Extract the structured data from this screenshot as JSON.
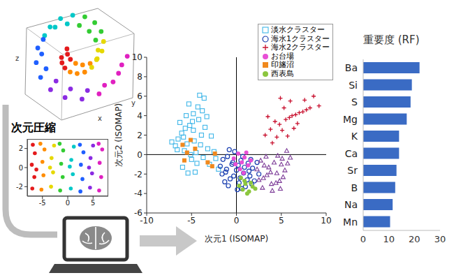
{
  "chart_data": [
    {
      "type": "scatter3d",
      "xlabel": "x",
      "ylabel": "y",
      "zlabel": "z",
      "tick_labels": false,
      "xlim": [
        -1,
        1.3
      ],
      "ylim": [
        -0.9,
        0.8
      ],
      "series": [
        {
          "color": "#e41a1c",
          "x": [
            -0.263,
            -0.252,
            -0.188,
            -0.143,
            -0.132,
            -0.068
          ],
          "y": [
            -0.042,
            -0.135,
            -0.224,
            0.108,
            0.015,
            -0.074
          ]
        },
        {
          "color": "#ff8c00",
          "x": [
            -0.073,
            0.08,
            0.246,
            0.047,
            0.2,
            0.366
          ],
          "y": [
            -0.294,
            -0.321,
            -0.296,
            -0.144,
            -0.171,
            -0.146
          ]
        },
        {
          "color": "#e6d800",
          "x": [
            0.4,
            0.506,
            0.54,
            0.52,
            0.626,
            0.66
          ],
          "y": [
            -0.213,
            -0.08,
            0.086,
            -0.063,
            0.07,
            0.236
          ]
        },
        {
          "color": "#33cc33",
          "x": [
            0.487,
            0.346,
            0.129,
            0.607,
            0.466,
            0.249
          ],
          "y": [
            0.261,
            0.414,
            0.515,
            0.411,
            0.564,
            0.665
          ]
        },
        {
          "color": "#00c8c8",
          "x": [
            -0.137,
            -0.404,
            -0.634,
            -0.017,
            -0.284,
            -0.514
          ],
          "y": [
            0.543,
            0.485,
            0.339,
            0.693,
            0.635,
            0.489
          ]
        },
        {
          "color": "#1f5fff",
          "x": [
            -0.784,
            -0.818,
            -0.722,
            -0.664,
            -0.698,
            -0.602
          ],
          "y": [
            0.123,
            -0.131,
            -0.388,
            0.273,
            0.019,
            -0.238
          ]
        },
        {
          "color": "#8a2be2",
          "x": [
            -0.503,
            -0.185,
            0.187,
            -0.383,
            -0.065,
            0.307
          ],
          "y": [
            -0.602,
            -0.738,
            -0.766,
            -0.452,
            -0.588,
            -0.616
          ]
        },
        {
          "color": "#e020c0",
          "x": [
            0.562,
            0.869,
            1.06,
            0.682,
            0.989,
            1.18
          ],
          "y": [
            -0.674,
            -0.467,
            -0.171,
            -0.524,
            -0.317,
            -0.021
          ]
        }
      ]
    },
    {
      "type": "scatter",
      "title": "次元圧縮",
      "xlim": [
        -8,
        8
      ],
      "ylim": [
        -3,
        3
      ],
      "xticks": [
        -5,
        0,
        5
      ],
      "yticks": [
        -2,
        0,
        2
      ],
      "series": [
        {
          "color": "#e41a1c",
          "x": [
            -7,
            -6.6,
            -7.1,
            -6.5,
            -6.9,
            -6.2
          ],
          "y": [
            -2.2,
            -1,
            0.3,
            1.5,
            2.4,
            -0.2
          ]
        },
        {
          "color": "#ff8c00",
          "x": [
            -5.2,
            -4.8,
            -5,
            -4.6,
            -5.4
          ],
          "y": [
            -2.3,
            -0.8,
            0.6,
            1.9,
            2.5
          ]
        },
        {
          "color": "#e6d800",
          "x": [
            -3.3,
            -2.9,
            -3.2,
            -2.7,
            -3.5
          ],
          "y": [
            -2,
            -0.5,
            1,
            2.3,
            0
          ]
        },
        {
          "color": "#33cc33",
          "x": [
            -1.5,
            -1,
            -1.3,
            -0.9,
            -1.6
          ],
          "y": [
            -2.4,
            -1,
            0.4,
            1.8,
            2.5
          ]
        },
        {
          "color": "#00c8c8",
          "x": [
            0.6,
            1,
            0.7,
            1.2,
            0.4
          ],
          "y": [
            -2.2,
            -0.7,
            0.8,
            2.2,
            0.1
          ]
        },
        {
          "color": "#1f5fff",
          "x": [
            2.5,
            2.9,
            2.6,
            3.1,
            2.4
          ],
          "y": [
            -2.5,
            -1.2,
            0.3,
            1.6,
            2.4
          ]
        },
        {
          "color": "#8a2be2",
          "x": [
            4.4,
            4.8,
            4.5,
            5,
            4.2
          ],
          "y": [
            -2.1,
            -0.6,
            1,
            2.3,
            0
          ]
        },
        {
          "color": "#e020c0",
          "x": [
            6.2,
            6.6,
            6.3,
            6.8,
            6.1
          ],
          "y": [
            -2.4,
            -1,
            0.5,
            1.9,
            2.5
          ]
        }
      ]
    },
    {
      "type": "scatter",
      "xlabel": "次元1 (ISOMAP)",
      "ylabel": "次元2 (ISOMAP)",
      "xlim": [
        -10,
        10
      ],
      "ylim": [
        -6,
        10
      ],
      "xticks": [
        -10,
        -5,
        0,
        5,
        10
      ],
      "yticks": [
        -6,
        -4,
        -2,
        0,
        2,
        4,
        6,
        8,
        10
      ],
      "legend": "top-right",
      "series": [
        {
          "name": "淡水クラスター",
          "color": "#3fb6e8",
          "marker": "square_open",
          "x": [
            -7.2,
            -6.8,
            -6.5,
            -6.1,
            -5.8,
            -5.5,
            -5.2,
            -5.0,
            -4.8,
            -4.5,
            -4.2,
            -4.0,
            -3.8,
            -3.5,
            -3.2,
            -3.0,
            -2.8,
            -2.5,
            -6.0,
            -5.6,
            -5.3,
            -4.9,
            -4.6,
            -4.3,
            -3.9,
            -3.6,
            -5.7,
            -5.1,
            -4.4,
            -6.3,
            -2.3,
            -2.0,
            -4.7,
            -5.4,
            -3.3,
            -6.6,
            -5.9,
            -4.1,
            -3.7,
            -4.8
          ],
          "y": [
            1.3,
            0.9,
            1.6,
            2.2,
            0.4,
            1.1,
            3.0,
            -0.5,
            2.5,
            0.2,
            3.6,
            1.0,
            4.5,
            2.8,
            0.6,
            -1.0,
            1.9,
            0.3,
            -1.3,
            4.0,
            5.2,
            3.4,
            -1.8,
            4.9,
            2.0,
            5.8,
            2.7,
            0.0,
            -0.9,
            3.3,
            -0.4,
            -1.5,
            1.4,
            -1.9,
            3.9,
            0.5,
            1.8,
            6.1,
            -0.3,
            4.2
          ]
        },
        {
          "name": "海水1クラスター",
          "color": "#1a3fb0",
          "marker": "circle_open",
          "x": [
            -1.8,
            -1.5,
            -1.2,
            -1.0,
            -0.7,
            -0.5,
            -0.2,
            0.0,
            0.3,
            0.5,
            0.8,
            1.0,
            1.3,
            1.5,
            1.8,
            2.0,
            2.3,
            -1.3,
            -0.8,
            -0.3,
            0.2,
            0.7,
            1.2,
            1.7,
            -1.6,
            -0.9,
            0.1,
            0.9,
            1.6,
            2.5,
            -0.4,
            0.6,
            1.4,
            -1.1,
            0.4
          ],
          "y": [
            -1.2,
            -0.5,
            -1.8,
            -0.2,
            -2.5,
            -1.0,
            0.3,
            -1.6,
            -2.9,
            -0.6,
            -1.9,
            -3.3,
            -0.9,
            -2.2,
            -1.4,
            -2.7,
            -0.8,
            -2.8,
            0.5,
            -2.2,
            -1.1,
            -0.2,
            -2.6,
            -3.0,
            -2.0,
            -3.2,
            -3.6,
            -1.3,
            -0.5,
            -2.0,
            -0.8,
            -3.5,
            -1.7,
            -1.5,
            -2.4
          ]
        },
        {
          "name": "海水2クラスター",
          "color": "#c8102e",
          "marker": "plus",
          "x": [
            3.2,
            3.8,
            4.3,
            4.8,
            5.1,
            5.5,
            5.9,
            6.2,
            6.6,
            7.0,
            7.4,
            7.8,
            8.2,
            4.5,
            5.3,
            6.0,
            6.8,
            3.5,
            4.0,
            7.6,
            8.6,
            9.2,
            5.7,
            6.4,
            4.9
          ],
          "y": [
            2.0,
            2.6,
            3.4,
            3.1,
            2.5,
            3.6,
            3.8,
            4.0,
            4.1,
            4.3,
            4.4,
            4.6,
            4.8,
            1.8,
            4.8,
            5.5,
            3.2,
            3.9,
            1.2,
            5.6,
            6.0,
            5.0,
            1.9,
            2.7,
            5.8
          ]
        },
        {
          "color": "#7d3c98",
          "marker": "triangle_open",
          "x": [
            2.3,
            2.7,
            3.0,
            3.3,
            3.6,
            3.9,
            4.2,
            4.5,
            4.8,
            5.1,
            5.4,
            5.7,
            6.0,
            2.9,
            3.4,
            4.0,
            4.6,
            5.2,
            3.1,
            4.4,
            5.0,
            3.8,
            2.5,
            4.9,
            5.6
          ],
          "y": [
            -1.5,
            -0.6,
            -2.4,
            -0.2,
            -1.3,
            -3.0,
            -0.8,
            -1.9,
            -2.7,
            -0.4,
            -1.6,
            -0.9,
            -0.3,
            -3.4,
            -2.1,
            -3.7,
            -0.1,
            -2.3,
            -1.1,
            -2.9,
            -1.0,
            -1.8,
            -2.6,
            -3.5,
            0.4
          ]
        },
        {
          "name": "お台場",
          "color": "#e84fd6",
          "marker": "circle",
          "x": [
            -0.3,
            0.2,
            0.6,
            0.9,
            1.3,
            1.6,
            0.4,
            1.1,
            -0.1,
            0.8
          ],
          "y": [
            -0.4,
            0.1,
            -0.8,
            -0.3,
            -1.1,
            -0.6,
            -1.5,
            0.2,
            -1.0,
            -1.9
          ]
        },
        {
          "name": "印旛沼",
          "color": "#f0891e",
          "marker": "square",
          "x": [
            -6.0,
            -5.5,
            -5.1,
            -4.6,
            -3.2,
            -2.7,
            -2.4,
            -5.8
          ],
          "y": [
            1.0,
            0.2,
            1.5,
            0.6,
            -0.8,
            -1.2,
            0.1,
            -0.6
          ]
        },
        {
          "name": "西表島",
          "color": "#8cc63f",
          "marker": "circle",
          "x": [
            0.3,
            0.7,
            1.0,
            1.4,
            1.8,
            0.9,
            1.2,
            0.5,
            1.6,
            2.1
          ],
          "y": [
            -3.2,
            -3.6,
            -3.0,
            -3.8,
            -3.3,
            -2.7,
            -4.0,
            -2.4,
            -2.9,
            -3.5
          ]
        }
      ]
    },
    {
      "type": "bar",
      "title": "重要度 (RF)",
      "orientation": "horizontal",
      "categories": [
        "Ba",
        "Si",
        "S",
        "Mg",
        "K",
        "Ca",
        "Sr",
        "B",
        "Na",
        "Mn"
      ],
      "values": [
        22,
        19,
        18.5,
        17,
        14,
        14,
        13,
        12.5,
        11.5,
        10.5
      ],
      "color": "#3a6bc4",
      "xlim": [
        0,
        30
      ],
      "xticks": [
        0,
        10,
        20,
        30
      ]
    }
  ]
}
